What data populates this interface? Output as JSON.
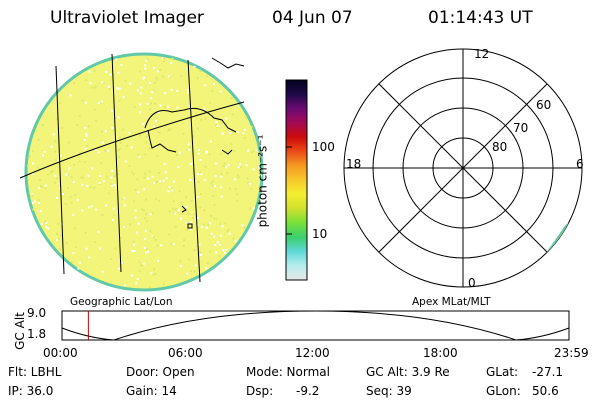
{
  "header": {
    "instrument": "Ultraviolet Imager",
    "date": "04 Jun 07",
    "time": "01:14:43 UT"
  },
  "colors": {
    "globe_fill": "#f2f57a",
    "globe_edge": "#62c9a8",
    "timeline_marker": "#c00000"
  },
  "colorbar": {
    "unit_label": "photon cm⁻²s⁻¹",
    "ticks": [
      "100",
      "10"
    ],
    "scale": "log",
    "stops": [
      "#e8e8e8",
      "#b8ecec",
      "#5fd8d8",
      "#3ccf6e",
      "#78e03a",
      "#cfe02e",
      "#f3ef32",
      "#f9c82c",
      "#f39a22",
      "#ea4a18",
      "#cc0a0a",
      "#a40a55",
      "#6c0a75",
      "#1e0a46",
      "#02021e"
    ]
  },
  "left_panel": {
    "caption": "Geographic Lat/Lon",
    "icon": "earth-globe-icon"
  },
  "right_panel": {
    "caption": "Apex MLat/MLT",
    "mlt_labels": {
      "top": "12",
      "bottom": "0",
      "left": "18",
      "right": "6"
    },
    "mlat_labels": [
      "60",
      "70",
      "80"
    ]
  },
  "timeline": {
    "axis_label": "GC Alt",
    "y_ticks": [
      "9.0",
      "1.8"
    ],
    "x_ticks": [
      "00:00",
      "06:00",
      "12:00",
      "18:00",
      "23:59"
    ],
    "current_time_fraction": 0.052
  },
  "status": {
    "filter": "Flt: LBHL",
    "ip": "IP: 36.0",
    "door": "Door: Open",
    "gain": "Gain: 14",
    "mode": "Mode: Normal",
    "dsp": "Dsp:",
    "dsp_value": "-9.2",
    "gc_alt": "GC Alt: 3.9 Re",
    "seq": "Seq: 39",
    "glat": "GLat:",
    "glat_value": "-27.1",
    "glon": "GLon:",
    "glon_value": "50.6"
  }
}
